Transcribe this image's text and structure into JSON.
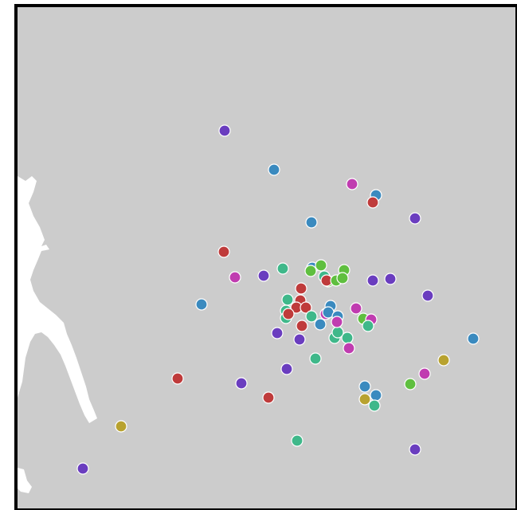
{
  "map": {
    "background_color": "#cccccc",
    "land_color": "#ffffff",
    "marker_colors": {
      "purple": "#6a3dbf",
      "blue": "#3a8abf",
      "red": "#bf3b3b",
      "magenta": "#c03cb0",
      "teal": "#3fb88a",
      "green": "#5fbf3f",
      "olive": "#b8a22f"
    },
    "markers": [
      {
        "color": "purple"
      },
      {
        "color": "blue"
      },
      {
        "color": "magenta"
      },
      {
        "color": "blue"
      },
      {
        "color": "red"
      },
      {
        "color": "purple"
      },
      {
        "color": "blue"
      },
      {
        "color": "red"
      },
      {
        "color": "magenta"
      },
      {
        "color": "purple"
      },
      {
        "color": "teal"
      },
      {
        "color": "blue"
      },
      {
        "color": "green"
      },
      {
        "color": "green"
      },
      {
        "color": "teal"
      },
      {
        "color": "green"
      },
      {
        "color": "red"
      },
      {
        "color": "green"
      },
      {
        "color": "green"
      },
      {
        "color": "green"
      },
      {
        "color": "purple"
      },
      {
        "color": "purple"
      },
      {
        "color": "purple"
      },
      {
        "color": "blue"
      },
      {
        "color": "red"
      },
      {
        "color": "teal"
      },
      {
        "color": "red"
      },
      {
        "color": "red"
      },
      {
        "color": "teal"
      },
      {
        "color": "red"
      },
      {
        "color": "blue"
      },
      {
        "color": "teal"
      },
      {
        "color": "magenta"
      },
      {
        "color": "red"
      },
      {
        "color": "magenta"
      },
      {
        "color": "blue"
      },
      {
        "color": "teal"
      },
      {
        "color": "blue"
      },
      {
        "color": "green"
      },
      {
        "color": "magenta"
      },
      {
        "color": "teal"
      },
      {
        "color": "blue"
      },
      {
        "color": "purple"
      },
      {
        "color": "purple"
      },
      {
        "color": "teal"
      },
      {
        "color": "teal"
      },
      {
        "color": "magenta"
      },
      {
        "color": "blue"
      },
      {
        "color": "teal"
      },
      {
        "color": "purple"
      },
      {
        "color": "red"
      },
      {
        "color": "purple"
      },
      {
        "color": "red"
      },
      {
        "color": "olive"
      },
      {
        "color": "blue"
      },
      {
        "color": "teal"
      },
      {
        "color": "olive"
      },
      {
        "color": "green"
      },
      {
        "color": "magenta"
      },
      {
        "color": "olive"
      },
      {
        "color": "blue"
      },
      {
        "color": "teal"
      },
      {
        "color": "purple"
      },
      {
        "color": "purple"
      },
      {
        "color": "teal"
      },
      {
        "color": "magenta"
      },
      {
        "color": "red"
      }
    ]
  }
}
